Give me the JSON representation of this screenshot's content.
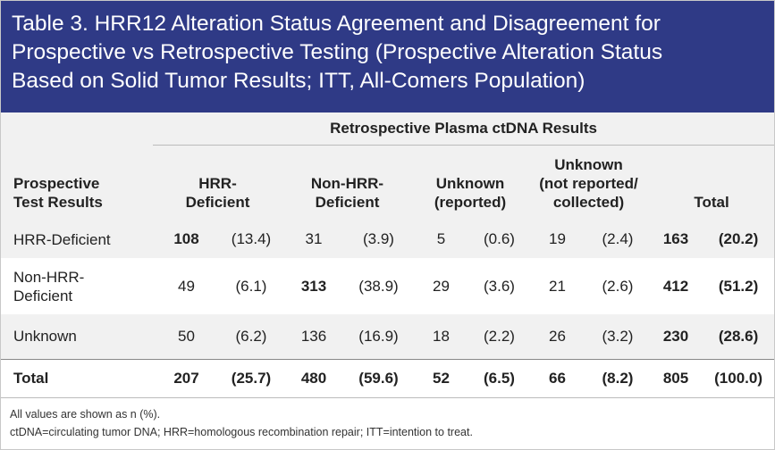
{
  "header": {
    "title": "Table 3. HRR12 Alteration Status Agreement and Disagreement for Prospective vs Retrospective Testing (Prospective Alteration Status Based on Solid Tumor Results; ITT, All-Comers Population)"
  },
  "table": {
    "spanner": "Retrospective Plasma ctDNA Results",
    "row_header": [
      "Prospective",
      "Test Results"
    ],
    "columns": [
      [
        "HRR-",
        "Deficient"
      ],
      [
        "Non-HRR-",
        "Deficient"
      ],
      [
        "Unknown",
        "(reported)"
      ],
      [
        "Unknown",
        "(not reported/",
        "collected)"
      ],
      [
        "Total"
      ]
    ],
    "rows": [
      {
        "label": [
          "HRR-Deficient"
        ],
        "cells": [
          [
            108,
            "(13.4)"
          ],
          [
            31,
            "(3.9)"
          ],
          [
            5,
            "(0.6)"
          ],
          [
            19,
            "(2.4)"
          ],
          [
            163,
            "(20.2)"
          ]
        ]
      },
      {
        "label": [
          "Non-HRR-",
          "Deficient"
        ],
        "cells": [
          [
            49,
            "(6.1)"
          ],
          [
            313,
            "(38.9)"
          ],
          [
            29,
            "(3.6)"
          ],
          [
            21,
            "(2.6)"
          ],
          [
            412,
            "(51.2)"
          ]
        ]
      },
      {
        "label": [
          "Unknown"
        ],
        "cells": [
          [
            50,
            "(6.2)"
          ],
          [
            136,
            "(16.9)"
          ],
          [
            18,
            "(2.2)"
          ],
          [
            26,
            "(3.2)"
          ],
          [
            230,
            "(28.6)"
          ]
        ]
      },
      {
        "label": [
          "Total"
        ],
        "cells": [
          [
            207,
            "(25.7)"
          ],
          [
            480,
            "(59.6)"
          ],
          [
            52,
            "(6.5)"
          ],
          [
            66,
            "(8.2)"
          ],
          [
            805,
            "(100.0)"
          ]
        ]
      }
    ]
  },
  "footnotes": [
    "All values are shown as n (%).",
    "ctDNA=circulating tumor DNA; HRR=homologous recombination repair; ITT=intention to treat."
  ]
}
